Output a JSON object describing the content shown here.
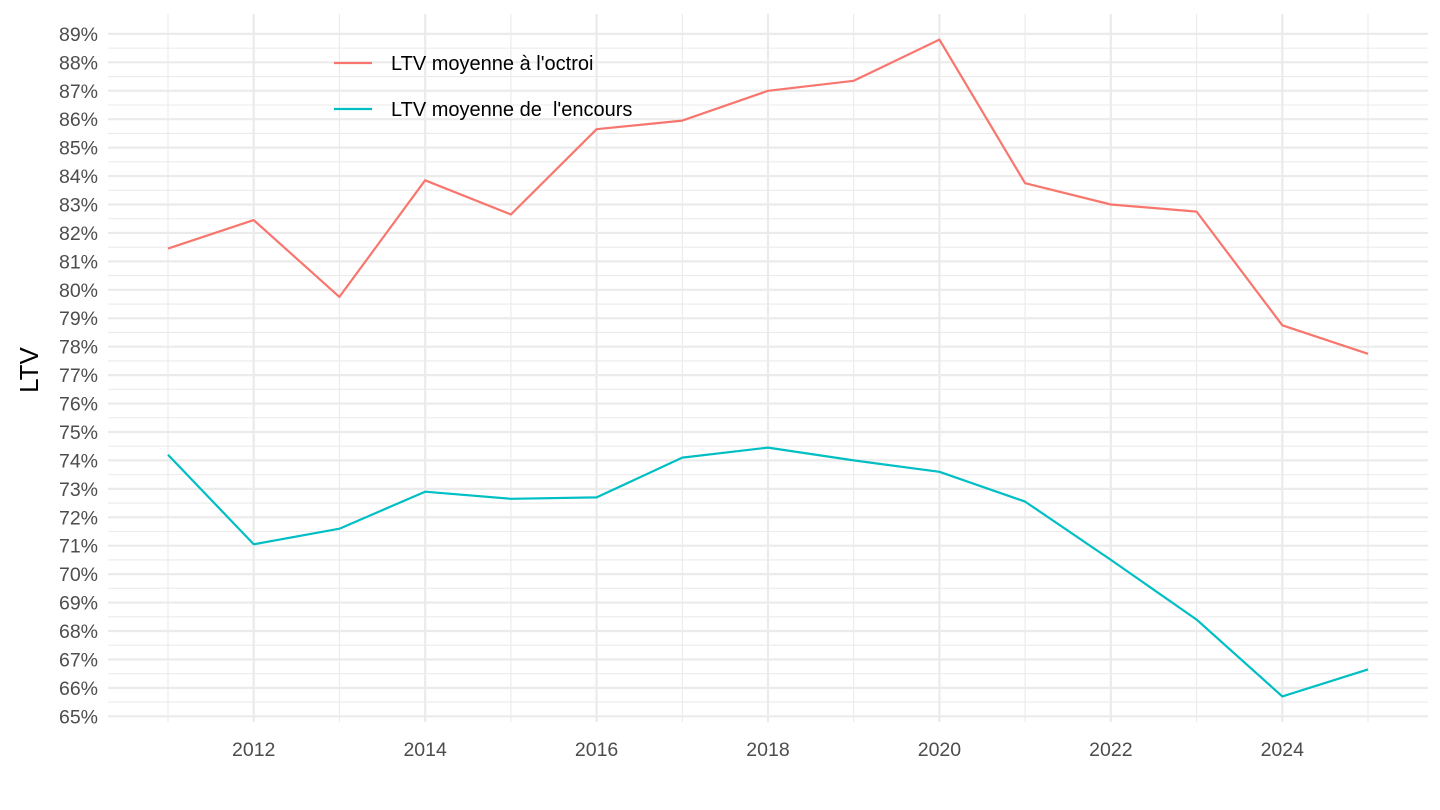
{
  "chart_data": {
    "type": "line",
    "title": "",
    "xlabel": "",
    "ylabel": "LTV",
    "x": [
      2011,
      2012,
      2013,
      2014,
      2015,
      2016,
      2017,
      2018,
      2019,
      2020,
      2021,
      2022,
      2023,
      2024,
      2025
    ],
    "series": [
      {
        "name": "LTV moyenne à l'octroi",
        "color": "#F8766D",
        "values": [
          81.45,
          82.45,
          79.75,
          83.85,
          82.65,
          85.65,
          85.95,
          87.0,
          87.35,
          88.8,
          83.75,
          83.0,
          82.75,
          78.75,
          77.75
        ]
      },
      {
        "name": "LTV moyenne de  l'encours",
        "color": "#00BFC4",
        "values": [
          74.2,
          71.05,
          71.6,
          72.9,
          72.65,
          72.7,
          74.1,
          74.45,
          74.0,
          73.6,
          72.55,
          70.5,
          68.4,
          65.7,
          66.65
        ]
      }
    ],
    "xticks": [
      2012,
      2014,
      2016,
      2018,
      2020,
      2022,
      2024
    ],
    "xlim": [
      2010.3,
      2025.7
    ],
    "yticks": [
      65,
      66,
      67,
      68,
      69,
      70,
      71,
      72,
      73,
      74,
      75,
      76,
      77,
      78,
      79,
      80,
      81,
      82,
      83,
      84,
      85,
      86,
      87,
      88,
      89
    ],
    "ytick_suffix": "%",
    "ylim": [
      64.8,
      89.7
    ],
    "grid": true,
    "legend_position": "top-left",
    "background": "#ffffff",
    "grid_color": "#ebebeb"
  }
}
